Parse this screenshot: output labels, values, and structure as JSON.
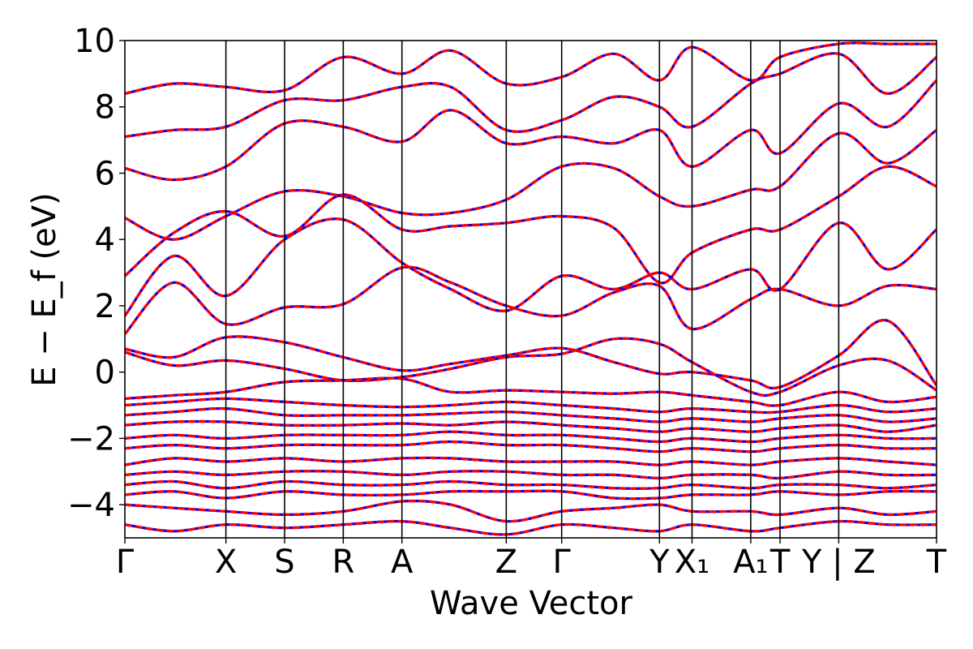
{
  "chart_data": {
    "type": "line",
    "title": "",
    "xlabel": "Wave Vector",
    "ylabel": "E − E_f (eV)",
    "ylim": [
      -5,
      10
    ],
    "yticks": [
      {
        "value": 10,
        "label": "10"
      },
      {
        "value": 8,
        "label": "8"
      },
      {
        "value": 6,
        "label": "6"
      },
      {
        "value": 4,
        "label": "4"
      },
      {
        "value": 2,
        "label": "2"
      },
      {
        "value": 0,
        "label": "0"
      },
      {
        "value": -2,
        "label": "−2"
      },
      {
        "value": -4,
        "label": "−4"
      }
    ],
    "xlim": [
      0,
      24.9
    ],
    "kpoints": [
      {
        "x": 0.0,
        "label": "Γ"
      },
      {
        "x": 3.1,
        "label": "X"
      },
      {
        "x": 4.9,
        "label": "S"
      },
      {
        "x": 6.7,
        "label": "R"
      },
      {
        "x": 8.5,
        "label": "A"
      },
      {
        "x": 11.7,
        "label": "Z"
      },
      {
        "x": 13.4,
        "label": "Γ"
      },
      {
        "x": 16.4,
        "label": "Y"
      },
      {
        "x": 17.4,
        "label": "X₁"
      },
      {
        "x": 19.2,
        "label": "A₁"
      },
      {
        "x": 20.1,
        "label": "T"
      },
      {
        "x": 21.9,
        "label": "Y | Z"
      },
      {
        "x": 24.9,
        "label": "T"
      }
    ],
    "series_colors": {
      "reference": "#0000ff",
      "comparison": "#ff0000"
    },
    "bands": [
      {
        "x": [
          0,
          1.5,
          3.1,
          4.9,
          6.7,
          8.5,
          10,
          11.7,
          13.4,
          15,
          16.4,
          17.4,
          19.2,
          20.1,
          21.9,
          23.4,
          24.9
        ],
        "y": [
          0.7,
          0.45,
          1.05,
          0.9,
          0.45,
          0.05,
          0.25,
          0.5,
          0.72,
          0.3,
          -0.05,
          0.0,
          -0.25,
          -0.45,
          0.5,
          1.55,
          -0.4
        ]
      },
      {
        "x": [
          0,
          1.5,
          3.1,
          4.9,
          6.7,
          8.5,
          10,
          11.7,
          13.4,
          15,
          16.4,
          17.4,
          19.2,
          20.1,
          21.9,
          23.4,
          24.9
        ],
        "y": [
          0.6,
          0.2,
          0.35,
          0.1,
          -0.25,
          -0.15,
          0.1,
          0.45,
          0.55,
          1.0,
          0.85,
          0.3,
          -0.6,
          -0.6,
          0.2,
          0.35,
          -0.55
        ]
      },
      {
        "x": [
          0,
          1.5,
          3.1,
          4.9,
          6.7,
          8.5,
          10,
          11.7,
          13.4,
          15,
          16.4,
          17.4,
          19.2,
          20.1,
          21.9,
          23.4,
          24.9
        ],
        "y": [
          1.15,
          2.7,
          1.45,
          1.95,
          2.05,
          3.15,
          2.7,
          2.0,
          1.7,
          2.4,
          2.6,
          1.3,
          2.2,
          2.5,
          2.0,
          2.6,
          2.5
        ]
      },
      {
        "x": [
          0,
          1.5,
          3.1,
          4.9,
          6.7,
          8.5,
          10,
          11.7,
          13.4,
          15,
          16.4,
          17.4,
          19.2,
          20.1,
          21.9,
          23.4,
          24.9
        ],
        "y": [
          1.7,
          3.5,
          2.3,
          4.0,
          4.6,
          3.3,
          2.5,
          1.85,
          2.9,
          2.5,
          3.0,
          2.5,
          3.1,
          2.5,
          4.5,
          3.1,
          4.3
        ]
      },
      {
        "x": [
          0,
          1.5,
          3.1,
          4.9,
          6.7,
          8.5,
          10,
          11.7,
          13.4,
          15,
          16.4,
          17.4,
          19.2,
          20.1,
          21.9,
          23.4,
          24.9
        ],
        "y": [
          2.9,
          4.2,
          4.85,
          4.1,
          5.35,
          4.3,
          4.4,
          4.5,
          4.7,
          4.35,
          2.7,
          3.6,
          4.3,
          4.3,
          5.3,
          6.2,
          5.6
        ]
      },
      {
        "x": [
          0,
          1.5,
          3.1,
          4.9,
          6.7,
          8.5,
          10,
          11.7,
          13.4,
          15,
          16.4,
          17.4,
          19.2,
          20.1,
          21.9,
          23.4,
          24.9
        ],
        "y": [
          4.65,
          4.0,
          4.7,
          5.45,
          5.3,
          4.8,
          4.8,
          5.2,
          6.2,
          6.15,
          5.3,
          5.0,
          5.5,
          5.6,
          7.2,
          6.3,
          7.3
        ]
      },
      {
        "x": [
          0,
          1.5,
          3.1,
          4.9,
          6.7,
          8.5,
          10,
          11.7,
          13.4,
          15,
          16.4,
          17.4,
          19.2,
          20.1,
          21.9,
          23.4,
          24.9
        ],
        "y": [
          6.15,
          5.8,
          6.2,
          7.5,
          7.4,
          6.95,
          7.9,
          6.9,
          7.1,
          6.9,
          7.3,
          6.2,
          7.3,
          6.6,
          8.1,
          7.4,
          8.8
        ]
      },
      {
        "x": [
          0,
          1.5,
          3.1,
          4.9,
          6.7,
          8.5,
          10,
          11.7,
          13.4,
          15,
          16.4,
          17.4,
          19.2,
          20.1,
          21.9,
          23.4,
          24.9
        ],
        "y": [
          7.1,
          7.3,
          7.4,
          8.2,
          8.2,
          8.6,
          8.6,
          7.3,
          7.6,
          8.3,
          8.0,
          7.4,
          8.7,
          9.0,
          9.6,
          8.4,
          9.5
        ]
      },
      {
        "x": [
          0,
          1.5,
          3.1,
          4.9,
          6.7,
          8.5,
          10,
          11.7,
          13.4,
          15,
          16.4,
          17.4,
          19.2,
          20.1,
          21.9,
          23.4,
          24.9
        ],
        "y": [
          8.4,
          8.7,
          8.6,
          8.5,
          9.5,
          9.0,
          9.7,
          8.7,
          8.9,
          9.6,
          8.8,
          9.8,
          8.8,
          9.5,
          9.9,
          9.9,
          9.9
        ]
      },
      {
        "x": [
          0,
          1.5,
          3.1,
          4.9,
          6.7,
          8.5,
          10,
          11.7,
          13.4,
          15,
          16.4,
          17.4,
          19.2,
          20.1,
          21.9,
          23.4,
          24.9
        ],
        "y": [
          -0.8,
          -0.7,
          -0.6,
          -0.3,
          -0.25,
          -0.2,
          -0.6,
          -0.55,
          -0.6,
          -0.65,
          -0.6,
          -0.7,
          -0.9,
          -1.0,
          -0.6,
          -0.9,
          -0.75
        ]
      },
      {
        "x": [
          0,
          1.5,
          3.1,
          4.9,
          6.7,
          8.5,
          10,
          11.7,
          13.4,
          15,
          16.4,
          17.4,
          19.2,
          20.1,
          21.9,
          23.4,
          24.9
        ],
        "y": [
          -1.0,
          -0.9,
          -0.8,
          -0.9,
          -1.0,
          -1.05,
          -1.0,
          -0.9,
          -1.0,
          -1.1,
          -1.2,
          -1.1,
          -1.2,
          -1.2,
          -1.0,
          -1.2,
          -1.1
        ]
      },
      {
        "x": [
          0,
          1.5,
          3.1,
          4.9,
          6.7,
          8.5,
          10,
          11.7,
          13.4,
          15,
          16.4,
          17.4,
          19.2,
          20.1,
          21.9,
          23.4,
          24.9
        ],
        "y": [
          -1.3,
          -1.2,
          -1.1,
          -1.3,
          -1.3,
          -1.3,
          -1.25,
          -1.2,
          -1.3,
          -1.4,
          -1.5,
          -1.4,
          -1.5,
          -1.4,
          -1.3,
          -1.5,
          -1.4
        ]
      },
      {
        "x": [
          0,
          1.5,
          3.1,
          4.9,
          6.7,
          8.5,
          10,
          11.7,
          13.4,
          15,
          16.4,
          17.4,
          19.2,
          20.1,
          21.9,
          23.4,
          24.9
        ],
        "y": [
          -1.6,
          -1.5,
          -1.5,
          -1.6,
          -1.6,
          -1.55,
          -1.6,
          -1.5,
          -1.6,
          -1.7,
          -1.8,
          -1.7,
          -1.8,
          -1.7,
          -1.6,
          -1.8,
          -1.6
        ]
      },
      {
        "x": [
          0,
          1.5,
          3.1,
          4.9,
          6.7,
          8.5,
          10,
          11.7,
          13.4,
          15,
          16.4,
          17.4,
          19.2,
          20.1,
          21.9,
          23.4,
          24.9
        ],
        "y": [
          -2.0,
          -1.9,
          -2.0,
          -1.9,
          -1.9,
          -1.9,
          -1.8,
          -1.9,
          -1.9,
          -2.0,
          -2.1,
          -2.0,
          -2.1,
          -2.0,
          -1.9,
          -2.0,
          -2.0
        ]
      },
      {
        "x": [
          0,
          1.5,
          3.1,
          4.9,
          6.7,
          8.5,
          10,
          11.7,
          13.4,
          15,
          16.4,
          17.4,
          19.2,
          20.1,
          21.9,
          23.4,
          24.9
        ],
        "y": [
          -2.3,
          -2.2,
          -2.3,
          -2.2,
          -2.2,
          -2.2,
          -2.1,
          -2.2,
          -2.2,
          -2.3,
          -2.4,
          -2.3,
          -2.4,
          -2.3,
          -2.2,
          -2.3,
          -2.3
        ]
      },
      {
        "x": [
          0,
          1.5,
          3.1,
          4.9,
          6.7,
          8.5,
          10,
          11.7,
          13.4,
          15,
          16.4,
          17.4,
          19.2,
          20.1,
          21.9,
          23.4,
          24.9
        ],
        "y": [
          -2.8,
          -2.6,
          -2.7,
          -2.6,
          -2.7,
          -2.6,
          -2.6,
          -2.7,
          -2.7,
          -2.7,
          -2.8,
          -2.7,
          -2.8,
          -2.7,
          -2.6,
          -2.7,
          -2.8
        ]
      },
      {
        "x": [
          0,
          1.5,
          3.1,
          4.9,
          6.7,
          8.5,
          10,
          11.7,
          13.4,
          15,
          16.4,
          17.4,
          19.2,
          20.1,
          21.9,
          23.4,
          24.9
        ],
        "y": [
          -3.1,
          -3.0,
          -3.1,
          -3.0,
          -3.0,
          -3.1,
          -3.0,
          -3.0,
          -3.1,
          -3.1,
          -3.2,
          -3.1,
          -3.1,
          -3.2,
          -3.0,
          -3.1,
          -3.1
        ]
      },
      {
        "x": [
          0,
          1.5,
          3.1,
          4.9,
          6.7,
          8.5,
          10,
          11.7,
          13.4,
          15,
          16.4,
          17.4,
          19.2,
          20.1,
          21.9,
          23.4,
          24.9
        ],
        "y": [
          -3.4,
          -3.3,
          -3.5,
          -3.3,
          -3.4,
          -3.4,
          -3.3,
          -3.4,
          -3.4,
          -3.5,
          -3.5,
          -3.4,
          -3.5,
          -3.4,
          -3.4,
          -3.5,
          -3.4
        ]
      },
      {
        "x": [
          0,
          1.5,
          3.1,
          4.9,
          6.7,
          8.5,
          10,
          11.7,
          13.4,
          15,
          16.4,
          17.4,
          19.2,
          20.1,
          21.9,
          23.4,
          24.9
        ],
        "y": [
          -3.7,
          -3.6,
          -3.8,
          -3.6,
          -3.7,
          -3.7,
          -3.6,
          -3.6,
          -3.6,
          -3.8,
          -3.8,
          -3.7,
          -3.7,
          -3.6,
          -3.7,
          -3.6,
          -3.6
        ]
      },
      {
        "x": [
          0,
          1.5,
          3.1,
          4.9,
          6.7,
          8.5,
          10,
          11.7,
          13.4,
          15,
          16.4,
          17.4,
          19.2,
          20.1,
          21.9,
          23.4,
          24.9
        ],
        "y": [
          -4.0,
          -4.1,
          -4.2,
          -4.3,
          -4.2,
          -3.9,
          -4.0,
          -4.5,
          -4.2,
          -4.1,
          -4.0,
          -4.2,
          -4.2,
          -4.3,
          -4.1,
          -4.3,
          -4.2
        ]
      },
      {
        "x": [
          0,
          1.5,
          3.1,
          4.9,
          6.7,
          8.5,
          10,
          11.7,
          13.4,
          15,
          16.4,
          17.4,
          19.2,
          20.1,
          21.9,
          23.4,
          24.9
        ],
        "y": [
          -4.6,
          -4.8,
          -4.6,
          -4.7,
          -4.6,
          -4.5,
          -4.7,
          -4.9,
          -4.6,
          -4.7,
          -4.8,
          -4.6,
          -4.8,
          -4.7,
          -4.5,
          -4.6,
          -4.6
        ]
      }
    ]
  }
}
